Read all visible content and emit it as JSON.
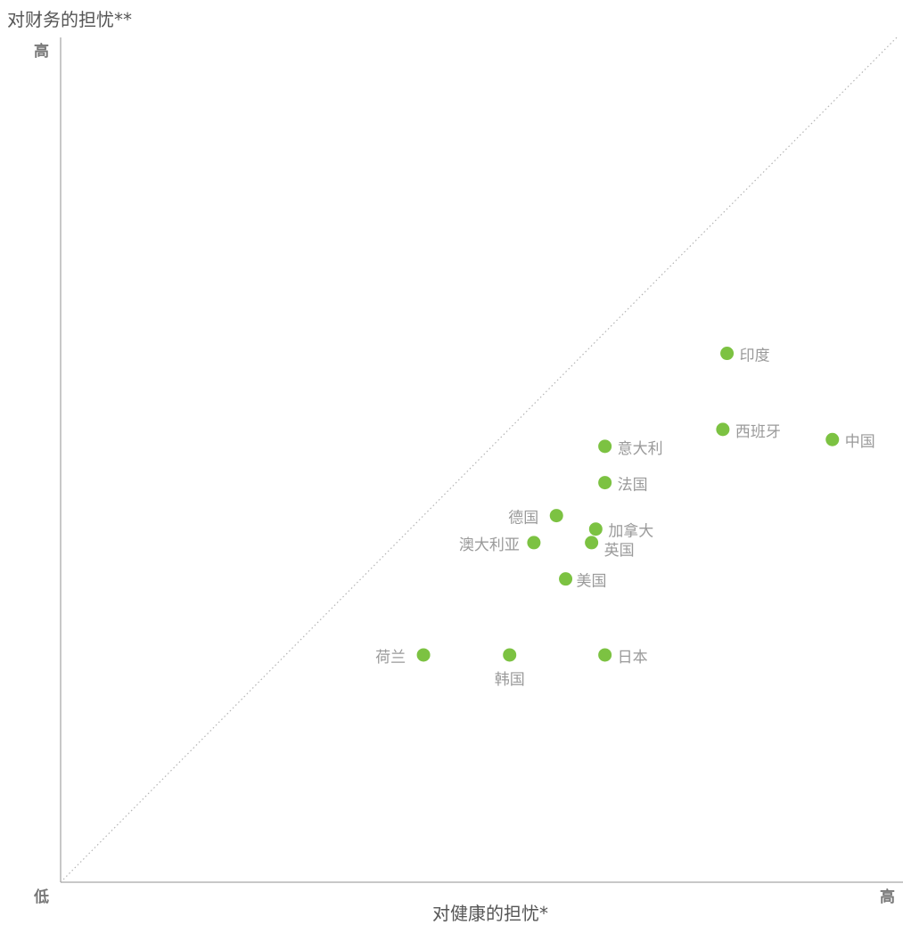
{
  "chart_data": {
    "type": "scatter",
    "title": "",
    "ylabel": "对财务的担忧**",
    "xlabel": "对健康的担忧*",
    "y_high_label": "高",
    "x_low_label": "低",
    "x_high_label": "高",
    "xlim": [
      0,
      100
    ],
    "ylim": [
      0,
      100
    ],
    "reference_line": "diagonal y=x (dotted)",
    "grid": false,
    "point_color": "#7cc242",
    "points": [
      {
        "name": "印度",
        "x": 79.7,
        "y": 62.6
      },
      {
        "name": "西班牙",
        "x": 79.2,
        "y": 53.6
      },
      {
        "name": "中国",
        "x": 92.3,
        "y": 52.4
      },
      {
        "name": "意大利",
        "x": 65.1,
        "y": 51.6
      },
      {
        "name": "法国",
        "x": 65.1,
        "y": 47.3
      },
      {
        "name": "德国",
        "x": 59.3,
        "y": 43.4
      },
      {
        "name": "加拿大",
        "x": 64.0,
        "y": 41.8
      },
      {
        "name": "澳大利亚",
        "x": 56.6,
        "y": 40.2
      },
      {
        "name": "英国",
        "x": 63.5,
        "y": 40.2
      },
      {
        "name": "美国",
        "x": 60.4,
        "y": 35.9
      },
      {
        "name": "荷兰",
        "x": 43.4,
        "y": 26.9
      },
      {
        "name": "韩国",
        "x": 53.7,
        "y": 26.9
      },
      {
        "name": "日本",
        "x": 65.1,
        "y": 26.9
      }
    ]
  }
}
